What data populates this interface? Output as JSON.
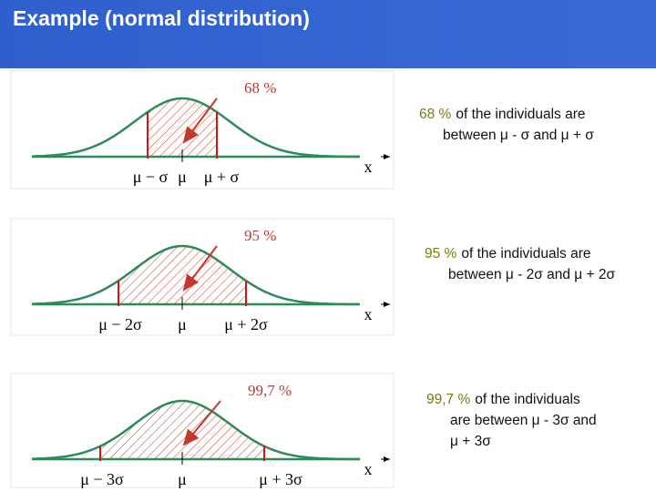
{
  "title": "Example (normal distribution)",
  "panels": [
    {
      "percent": "68 %",
      "labels": [
        "μ − σ",
        "μ",
        "μ + σ"
      ],
      "axis": "x",
      "description": {
        "highlight": "68 %",
        "lines": [
          "of the individuals are",
          "between μ - σ and μ + σ"
        ]
      }
    },
    {
      "percent": "95 %",
      "labels": [
        "μ − 2σ",
        "μ",
        "μ + 2σ"
      ],
      "axis": "x",
      "description": {
        "highlight": "95 %",
        "lines": [
          "of the individuals are",
          "between μ - 2σ and μ + 2σ"
        ]
      }
    },
    {
      "percent": "99,7 %",
      "labels": [
        "μ − 3σ",
        "μ",
        "μ + 3σ"
      ],
      "axis": "x",
      "description": {
        "highlight": "99,7 %",
        "lines": [
          "of the individuals",
          "are between μ - 3σ and",
          "μ + 3σ"
        ]
      }
    }
  ]
}
